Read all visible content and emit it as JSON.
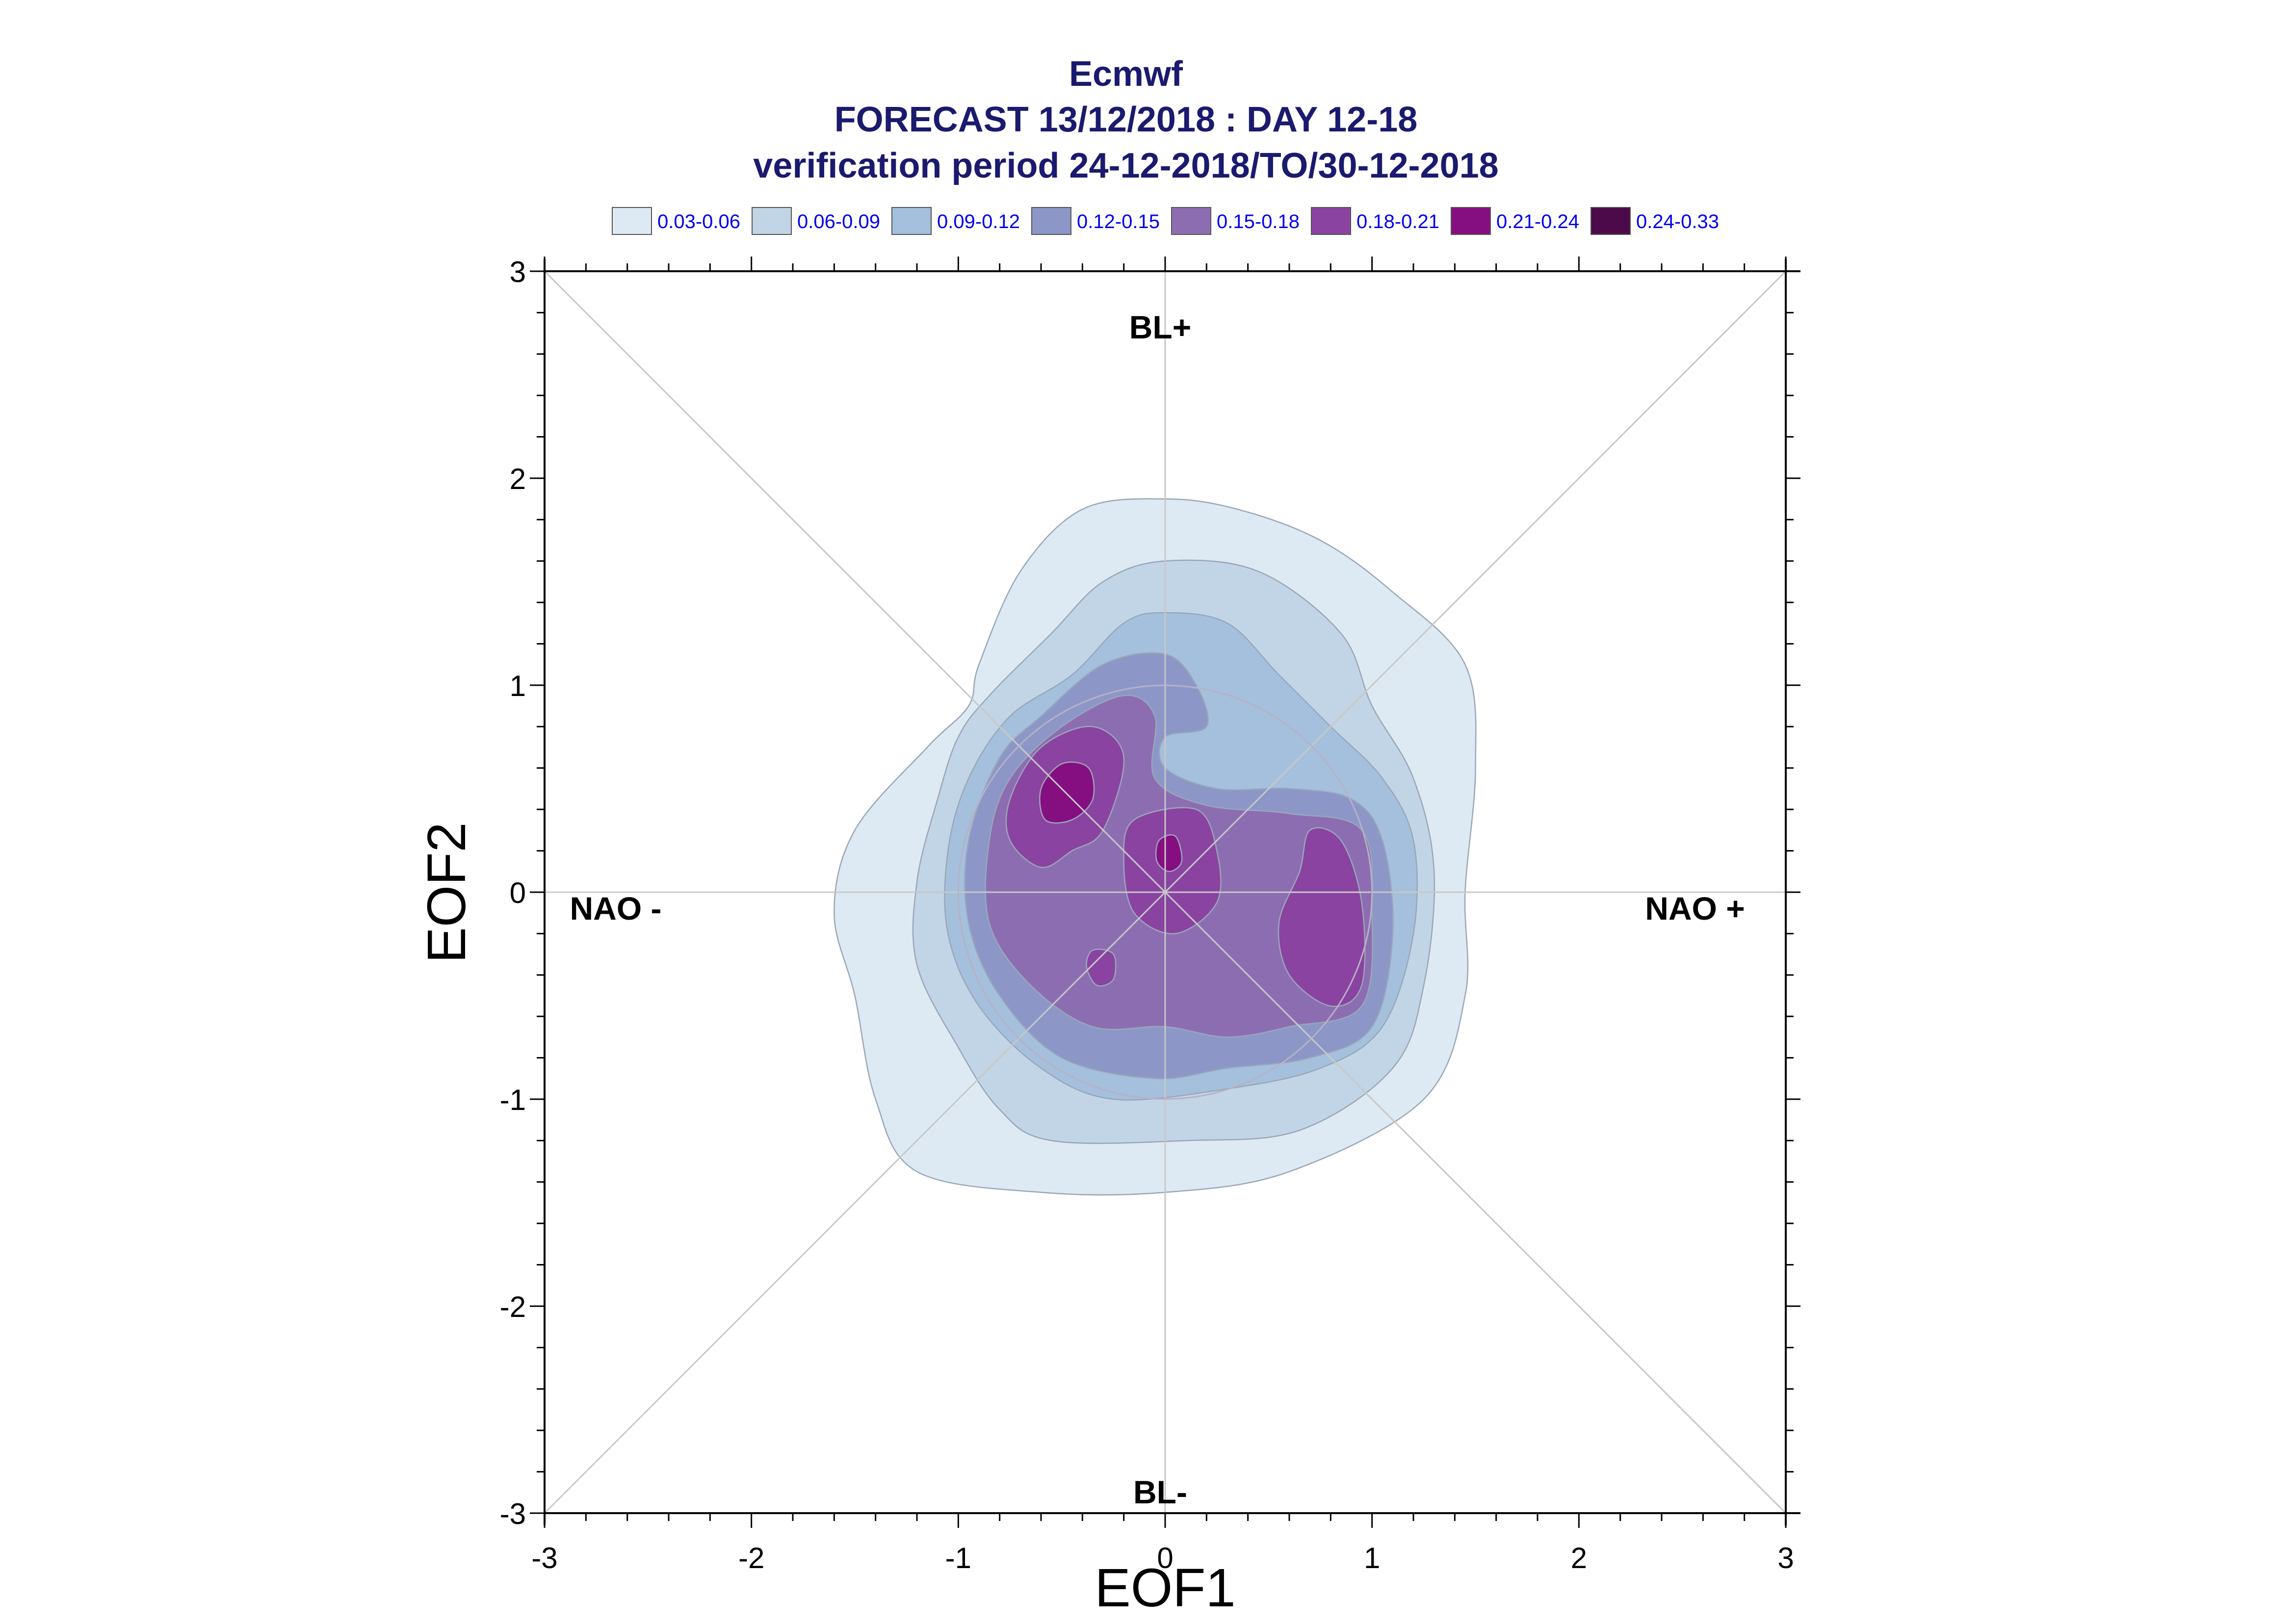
{
  "chart_data": {
    "type": "contour",
    "title_lines": [
      "Ecmwf",
      "FORECAST 13/12/2018 : DAY 12-18",
      "verification period 24-12-2018/TO/30-12-2018"
    ],
    "xlabel": "EOF1",
    "ylabel": "EOF2",
    "xlim": [
      -3,
      3
    ],
    "ylim": [
      -3,
      3
    ],
    "xticks": [
      "-3",
      "-2",
      "-1",
      "0",
      "1",
      "2",
      "3"
    ],
    "yticks": [
      "-3",
      "-2",
      "-1",
      "0",
      "1",
      "2",
      "3"
    ],
    "grid": false,
    "legend_position": "top",
    "legend": [
      {
        "label": "0.03-0.06",
        "color": "#deeaf3"
      },
      {
        "label": "0.06-0.09",
        "color": "#c2d5e6"
      },
      {
        "label": "0.09-0.12",
        "color": "#a4c0dc"
      },
      {
        "label": "0.12-0.15",
        "color": "#8c97c8"
      },
      {
        "label": "0.15-0.18",
        "color": "#8d6db2"
      },
      {
        "label": "0.18-0.21",
        "color": "#8a43a0"
      },
      {
        "label": "0.21-0.24",
        "color": "#850f80"
      },
      {
        "label": "0.24-0.33",
        "color": "#4d0a4a"
      }
    ],
    "regime_labels": {
      "top": "BL+",
      "bottom": "BL-",
      "left": "NAO -",
      "right": "NAO +"
    },
    "contours": [
      {
        "level": "0.03-0.06",
        "color": "#deeaf3",
        "polygons": [
          [
            [
              -0.9,
              1.1
            ],
            [
              -0.7,
              1.55
            ],
            [
              -0.4,
              1.85
            ],
            [
              0.0,
              1.9
            ],
            [
              0.35,
              1.85
            ],
            [
              0.75,
              1.7
            ],
            [
              1.1,
              1.45
            ],
            [
              1.45,
              1.1
            ],
            [
              1.5,
              0.6
            ],
            [
              1.45,
              0.0
            ],
            [
              1.45,
              -0.5
            ],
            [
              1.25,
              -1.0
            ],
            [
              0.6,
              -1.35
            ],
            [
              0.0,
              -1.45
            ],
            [
              -0.6,
              -1.45
            ],
            [
              -1.2,
              -1.35
            ],
            [
              -1.4,
              -1.0
            ],
            [
              -1.5,
              -0.5
            ],
            [
              -1.6,
              -0.1
            ],
            [
              -1.5,
              0.3
            ],
            [
              -1.15,
              0.7
            ],
            [
              -0.95,
              0.9
            ]
          ]
        ]
      },
      {
        "level": "0.06-0.09",
        "color": "#c2d5e6",
        "polygons": [
          [
            [
              -0.85,
              0.95
            ],
            [
              -0.55,
              1.25
            ],
            [
              -0.3,
              1.5
            ],
            [
              0.0,
              1.6
            ],
            [
              0.45,
              1.55
            ],
            [
              0.85,
              1.25
            ],
            [
              1.0,
              0.9
            ],
            [
              1.2,
              0.55
            ],
            [
              1.3,
              0.1
            ],
            [
              1.25,
              -0.45
            ],
            [
              1.1,
              -0.85
            ],
            [
              0.65,
              -1.15
            ],
            [
              0.1,
              -1.2
            ],
            [
              -0.55,
              -1.2
            ],
            [
              -0.8,
              -1.05
            ],
            [
              -1.0,
              -0.75
            ],
            [
              -1.2,
              -0.35
            ],
            [
              -1.2,
              0.05
            ],
            [
              -1.1,
              0.45
            ],
            [
              -1.0,
              0.75
            ]
          ]
        ]
      },
      {
        "level": "0.09-0.12",
        "color": "#a4c0dc",
        "polygons": [
          [
            [
              -0.75,
              0.85
            ],
            [
              -0.45,
              1.05
            ],
            [
              -0.2,
              1.3
            ],
            [
              0.0,
              1.35
            ],
            [
              0.3,
              1.3
            ],
            [
              0.55,
              1.05
            ],
            [
              0.8,
              0.8
            ],
            [
              1.05,
              0.55
            ],
            [
              1.2,
              0.25
            ],
            [
              1.2,
              -0.2
            ],
            [
              1.05,
              -0.65
            ],
            [
              0.75,
              -0.85
            ],
            [
              0.3,
              -0.95
            ],
            [
              -0.25,
              -1.0
            ],
            [
              -0.6,
              -0.85
            ],
            [
              -0.9,
              -0.55
            ],
            [
              -1.05,
              -0.2
            ],
            [
              -1.05,
              0.2
            ],
            [
              -0.95,
              0.55
            ]
          ]
        ]
      },
      {
        "level": "0.12-0.15",
        "color": "#8c97c8",
        "polygons": [
          [
            [
              -0.8,
              0.65
            ],
            [
              -0.6,
              0.85
            ],
            [
              -0.3,
              1.1
            ],
            [
              0.0,
              1.15
            ],
            [
              0.15,
              1.0
            ],
            [
              0.2,
              0.8
            ],
            [
              0.0,
              0.75
            ],
            [
              0.0,
              0.6
            ],
            [
              0.25,
              0.5
            ],
            [
              0.6,
              0.5
            ],
            [
              0.9,
              0.45
            ],
            [
              1.05,
              0.25
            ],
            [
              1.1,
              -0.2
            ],
            [
              1.0,
              -0.65
            ],
            [
              0.7,
              -0.8
            ],
            [
              0.3,
              -0.85
            ],
            [
              -0.05,
              -0.9
            ],
            [
              -0.5,
              -0.8
            ],
            [
              -0.8,
              -0.5
            ],
            [
              -0.95,
              -0.15
            ],
            [
              -0.95,
              0.25
            ]
          ]
        ]
      },
      {
        "level": "0.15-0.18",
        "color": "#8d6db2",
        "polygons": [
          [
            [
              -0.75,
              0.55
            ],
            [
              -0.5,
              0.8
            ],
            [
              -0.2,
              0.95
            ],
            [
              -0.05,
              0.85
            ],
            [
              -0.05,
              0.55
            ],
            [
              0.2,
              0.42
            ],
            [
              0.6,
              0.38
            ],
            [
              0.95,
              0.3
            ],
            [
              1.0,
              -0.1
            ],
            [
              0.95,
              -0.55
            ],
            [
              0.6,
              -0.65
            ],
            [
              0.3,
              -0.7
            ],
            [
              0.0,
              -0.65
            ],
            [
              -0.35,
              -0.65
            ],
            [
              -0.65,
              -0.45
            ],
            [
              -0.85,
              -0.15
            ],
            [
              -0.85,
              0.25
            ]
          ]
        ]
      },
      {
        "level": "0.18-0.21",
        "color": "#8a43a0",
        "polygons": [
          [
            [
              -0.75,
              0.45
            ],
            [
              -0.6,
              0.7
            ],
            [
              -0.35,
              0.8
            ],
            [
              -0.2,
              0.65
            ],
            [
              -0.3,
              0.3
            ],
            [
              -0.45,
              0.2
            ],
            [
              -0.6,
              0.12
            ],
            [
              -0.75,
              0.25
            ]
          ],
          [
            [
              -0.15,
              0.35
            ],
            [
              0.15,
              0.4
            ],
            [
              0.25,
              0.2
            ],
            [
              0.25,
              -0.05
            ],
            [
              0.05,
              -0.2
            ],
            [
              -0.15,
              -0.1
            ],
            [
              -0.2,
              0.15
            ]
          ],
          [
            [
              0.7,
              0.3
            ],
            [
              0.85,
              0.25
            ],
            [
              0.95,
              -0.05
            ],
            [
              0.95,
              -0.45
            ],
            [
              0.8,
              -0.55
            ],
            [
              0.6,
              -0.4
            ],
            [
              0.55,
              -0.15
            ],
            [
              0.65,
              0.1
            ]
          ],
          [
            [
              -0.35,
              -0.28
            ],
            [
              -0.25,
              -0.3
            ],
            [
              -0.25,
              -0.42
            ],
            [
              -0.33,
              -0.45
            ],
            [
              -0.38,
              -0.36
            ]
          ]
        ]
      },
      {
        "level": "0.21-0.24",
        "color": "#850f80",
        "polygons": [
          [
            [
              -0.6,
              0.5
            ],
            [
              -0.5,
              0.62
            ],
            [
              -0.37,
              0.6
            ],
            [
              -0.35,
              0.45
            ],
            [
              -0.45,
              0.35
            ],
            [
              -0.58,
              0.35
            ]
          ],
          [
            [
              -0.03,
              0.25
            ],
            [
              0.05,
              0.27
            ],
            [
              0.08,
              0.15
            ],
            [
              0.02,
              0.1
            ],
            [
              -0.04,
              0.15
            ]
          ]
        ]
      }
    ]
  }
}
